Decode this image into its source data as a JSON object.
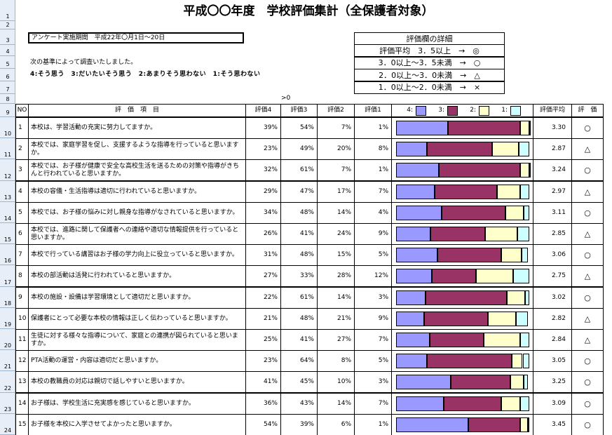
{
  "title": "平成〇〇年度　学校評価集計（全保護者対象）",
  "period": "アンケート実施期間　平成22年〇月1日～20日",
  "criteria_note": "次の基準によって調査いたしました。",
  "criteria": "4:そう思う　3:だいたいそう思う　2:あまりそう思わない　1:そう思わない",
  "detail": {
    "title": "評価欄の詳細",
    "rows": [
      "評価平均　3．5以上　→　◎",
      "3．0以上～3．5未満　→　○",
      "2．0以上～3．0未満　→　△",
      "1．0以上～2．0未満　→　×"
    ]
  },
  "marker": ">0",
  "row_numbers": [
    1,
    2,
    3,
    4,
    5,
    6,
    7,
    8,
    9,
    10,
    11,
    12,
    13,
    14,
    15,
    16,
    17,
    18,
    19,
    20,
    21,
    22,
    23,
    24
  ],
  "headers": [
    "NO",
    "評　価　項　目",
    "評価4",
    "評価3",
    "評価2",
    "評価1",
    "評価平均",
    "評　価"
  ],
  "legend": [
    {
      "label": "4:",
      "color": "#9999ff"
    },
    {
      "label": "3:",
      "color": "#993366"
    },
    {
      "label": "2:",
      "color": "#ffffcc"
    },
    {
      "label": "1:",
      "color": "#ccffff"
    }
  ],
  "rows": [
    {
      "no": 1,
      "item": "本校は、学習活動の充実に努力してますか。",
      "values": [
        39,
        54,
        7,
        1
      ],
      "value_labels": [
        "39%",
        "54%",
        "7%",
        "1%"
      ],
      "avg": "3.30",
      "rating": "○"
    },
    {
      "no": 2,
      "item": "本校では、家庭学習を促し、支援するような指導を行っていると思いますか。",
      "values": [
        23,
        49,
        20,
        8
      ],
      "value_labels": [
        "23%",
        "49%",
        "20%",
        "8%"
      ],
      "avg": "2.87",
      "rating": "△"
    },
    {
      "no": 3,
      "item": "本校では、お子様が健康で安全な高校生活を送るための対策や指導がきちんと行われていると思いますか。",
      "values": [
        32,
        61,
        7,
        1
      ],
      "value_labels": [
        "32%",
        "61%",
        "7%",
        "1%"
      ],
      "avg": "3.24",
      "rating": "○"
    },
    {
      "no": 4,
      "item": "本校の容儀・生活指導は適切に行われていると思いますか。",
      "values": [
        29,
        47,
        17,
        7
      ],
      "value_labels": [
        "29%",
        "47%",
        "17%",
        "7%"
      ],
      "avg": "2.97",
      "rating": "△"
    },
    {
      "no": 5,
      "item": "本校では、お子様の悩みに対し親身な指導がなされていると思いますか。",
      "values": [
        34,
        48,
        14,
        4
      ],
      "value_labels": [
        "34%",
        "48%",
        "14%",
        "4%"
      ],
      "avg": "3.11",
      "rating": "○"
    },
    {
      "no": 6,
      "item": "本校では、進路に関して保護者への連絡や適切な情報提供を行っていると思いますか。",
      "values": [
        26,
        41,
        24,
        9
      ],
      "value_labels": [
        "26%",
        "41%",
        "24%",
        "9%"
      ],
      "avg": "2.85",
      "rating": "△"
    },
    {
      "no": 7,
      "item": "本校で行っている講習はお子様の学力向上に役立っていると思いますか。",
      "values": [
        31,
        48,
        15,
        5
      ],
      "value_labels": [
        "31%",
        "48%",
        "15%",
        "5%"
      ],
      "avg": "3.06",
      "rating": "○"
    },
    {
      "no": 8,
      "item": "本校の部活動は活発に行われていると思いますか。",
      "values": [
        27,
        33,
        28,
        12
      ],
      "value_labels": [
        "27%",
        "33%",
        "28%",
        "12%"
      ],
      "avg": "2.75",
      "rating": "△"
    },
    {
      "no": 9,
      "item": "本校の施設・設備は学習環境として適切だと思いますか。",
      "values": [
        22,
        61,
        14,
        3
      ],
      "value_labels": [
        "22%",
        "61%",
        "14%",
        "3%"
      ],
      "avg": "3.02",
      "rating": "○"
    },
    {
      "no": 10,
      "item": "保護者にとって必要な本校の情報は正しく伝わっていると思いますか。",
      "values": [
        21,
        48,
        21,
        9
      ],
      "value_labels": [
        "21%",
        "48%",
        "21%",
        "9%"
      ],
      "avg": "2.82",
      "rating": "△"
    },
    {
      "no": 11,
      "item": "生徒に対する様々な指導について、家庭との連携が図られていると思いますか。",
      "values": [
        25,
        41,
        27,
        7
      ],
      "value_labels": [
        "25%",
        "41%",
        "27%",
        "7%"
      ],
      "avg": "2.84",
      "rating": "△"
    },
    {
      "no": 12,
      "item": "PTA活動の運営・内容は適切だと思いますか。",
      "values": [
        23,
        64,
        8,
        5
      ],
      "value_labels": [
        "23%",
        "64%",
        "8%",
        "5%"
      ],
      "avg": "3.05",
      "rating": "○"
    },
    {
      "no": 13,
      "item": "本校の教職員の対応は親切で話しやすいと思いますか。",
      "values": [
        41,
        45,
        10,
        3
      ],
      "value_labels": [
        "41%",
        "45%",
        "10%",
        "3%"
      ],
      "avg": "3.25",
      "rating": "○"
    },
    {
      "no": 14,
      "item": "お子様は、学校生活に充実感を感じていると思いますか。",
      "values": [
        36,
        43,
        14,
        7
      ],
      "value_labels": [
        "36%",
        "43%",
        "14%",
        "7%"
      ],
      "avg": "3.09",
      "rating": "○"
    },
    {
      "no": 15,
      "item": "お子様を本校に入学させてよかったと思いますか。",
      "values": [
        54,
        39,
        6,
        1
      ],
      "value_labels": [
        "54%",
        "39%",
        "6%",
        "1%"
      ],
      "avg": "3.45",
      "rating": "○"
    }
  ]
}
